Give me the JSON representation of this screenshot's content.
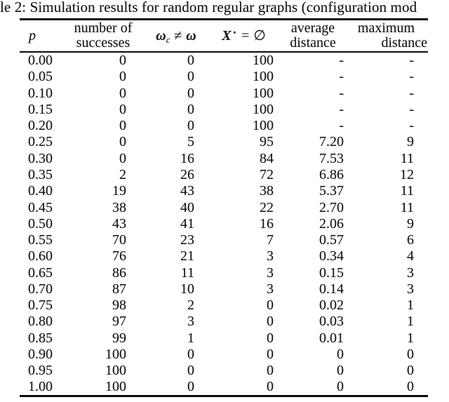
{
  "page": {
    "background": "#ffffff",
    "text_color": "#161616",
    "rule_color": "#0a0a0a"
  },
  "caption": {
    "visible_text": "le 2: Simulation results for random regular graphs (configuration mod"
  },
  "table": {
    "header": {
      "p": "p",
      "successes_line1": "number of",
      "successes_line2": "successes",
      "omega": {
        "w1": "ω",
        "sub": "c",
        "op": "≠",
        "w2": "ω"
      },
      "xstar": {
        "x": "X",
        "star": "⋆",
        "op": "=",
        "empty": "∅"
      },
      "avg_line1": "average",
      "avg_line2": "distance",
      "max_line1": "maximum",
      "max_line2": "distance"
    },
    "rows": [
      [
        "0.00",
        "0",
        "0",
        "100",
        "-",
        "-"
      ],
      [
        "0.05",
        "0",
        "0",
        "100",
        "-",
        "-"
      ],
      [
        "0.10",
        "0",
        "0",
        "100",
        "-",
        "-"
      ],
      [
        "0.15",
        "0",
        "0",
        "100",
        "-",
        "-"
      ],
      [
        "0.20",
        "0",
        "0",
        "100",
        "-",
        "-"
      ],
      [
        "0.25",
        "0",
        "5",
        "95",
        "7.20",
        "9"
      ],
      [
        "0.30",
        "0",
        "16",
        "84",
        "7.53",
        "11"
      ],
      [
        "0.35",
        "2",
        "26",
        "72",
        "6.86",
        "12"
      ],
      [
        "0.40",
        "19",
        "43",
        "38",
        "5.37",
        "11"
      ],
      [
        "0.45",
        "38",
        "40",
        "22",
        "2.70",
        "11"
      ],
      [
        "0.50",
        "43",
        "41",
        "16",
        "2.06",
        "9"
      ],
      [
        "0.55",
        "70",
        "23",
        "7",
        "0.57",
        "6"
      ],
      [
        "0.60",
        "76",
        "21",
        "3",
        "0.34",
        "4"
      ],
      [
        "0.65",
        "86",
        "11",
        "3",
        "0.15",
        "3"
      ],
      [
        "0.70",
        "87",
        "10",
        "3",
        "0.14",
        "3"
      ],
      [
        "0.75",
        "98",
        "2",
        "0",
        "0.02",
        "1"
      ],
      [
        "0.80",
        "97",
        "3",
        "0",
        "0.03",
        "1"
      ],
      [
        "0.85",
        "99",
        "1",
        "0",
        "0.01",
        "1"
      ],
      [
        "0.90",
        "100",
        "0",
        "0",
        "0",
        "0"
      ],
      [
        "0.95",
        "100",
        "0",
        "0",
        "0",
        "0"
      ],
      [
        "1.00",
        "100",
        "0",
        "0",
        "0",
        "0"
      ]
    ]
  }
}
